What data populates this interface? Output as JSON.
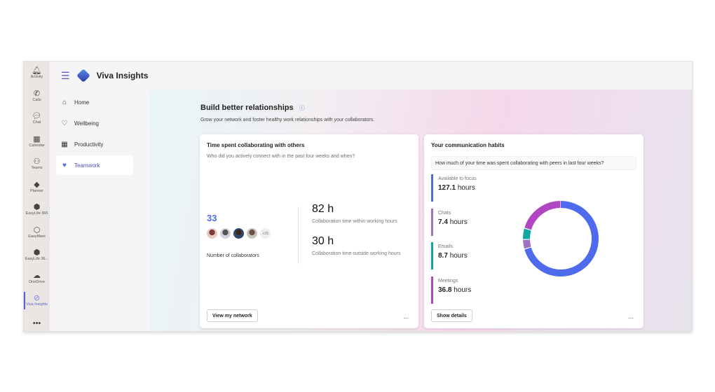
{
  "rail": [
    {
      "label": "Activity",
      "icon": "bell-icon",
      "g": "🔔︎"
    },
    {
      "label": "Calls",
      "icon": "phone-icon",
      "g": "✆"
    },
    {
      "label": "Chat",
      "icon": "chat-icon",
      "g": "💬︎"
    },
    {
      "label": "Calendar",
      "icon": "calendar-icon",
      "g": "▦"
    },
    {
      "label": "Teams",
      "icon": "teams-icon",
      "g": "⚇"
    },
    {
      "label": "Planner",
      "icon": "planner-icon",
      "g": "◆"
    },
    {
      "label": "EasyLife 365",
      "icon": "easylife-icon",
      "g": "⬢"
    },
    {
      "label": "EasyMeet",
      "icon": "easymeet-icon",
      "g": "⬡"
    },
    {
      "label": "EasyLife 36...",
      "icon": "easylife2-icon",
      "g": "⬢"
    },
    {
      "label": "OneDrive",
      "icon": "cloud-icon",
      "g": "☁"
    },
    {
      "label": "Viva Insights",
      "icon": "viva-insights-icon",
      "g": "⊘",
      "active": true
    },
    {
      "label": "",
      "icon": "more-apps-icon",
      "g": "•••"
    }
  ],
  "app": {
    "title": "Viva Insights"
  },
  "nav": [
    {
      "label": "Home",
      "icon": "home-icon",
      "g": "⌂"
    },
    {
      "label": "Wellbeing",
      "icon": "heart-icon",
      "g": "♡"
    },
    {
      "label": "Productivity",
      "icon": "calendar-icon",
      "g": "▦"
    },
    {
      "label": "Teamwork",
      "icon": "teamwork-icon",
      "g": "♥",
      "active": true
    }
  ],
  "page": {
    "title": "Build better relationships",
    "subtitle": "Grow your network and foster healthy work relationships with your collaborators."
  },
  "collab": {
    "title": "Time spent collaborating with others",
    "subtitle": "Who did you actively connect with in the past four weeks and when?",
    "count": "33",
    "more": "+29",
    "count_label": "Number of collaborators",
    "within_value": "82 h",
    "within_label": "Collaboration time within working hours",
    "outside_value": "30 h",
    "outside_label": "Collaboration time outside working hours",
    "button": "View my network",
    "menu": "..."
  },
  "habits": {
    "title": "Your communication habits",
    "question": "How much of your time was spent collaborating with peers in last four weeks?",
    "button": "Show details",
    "menu": "...",
    "unit": "hours",
    "items": [
      {
        "label": "Available to focus",
        "value": "127.1",
        "color": "#4f6bed"
      },
      {
        "label": "Chats",
        "value": "7.4",
        "color": "#9b72c4"
      },
      {
        "label": "Emails",
        "value": "8.7",
        "color": "#0ea5a5"
      },
      {
        "label": "Meetings",
        "value": "36.8",
        "color": "#b146c2"
      }
    ]
  },
  "chart_data": {
    "type": "pie",
    "donut": true,
    "categories": [
      "Available to focus",
      "Chats",
      "Emails",
      "Meetings"
    ],
    "values": [
      127.1,
      7.4,
      8.7,
      36.8
    ],
    "colors": [
      "#4f6bed",
      "#9b72c4",
      "#0ea5a5",
      "#b146c2"
    ]
  }
}
